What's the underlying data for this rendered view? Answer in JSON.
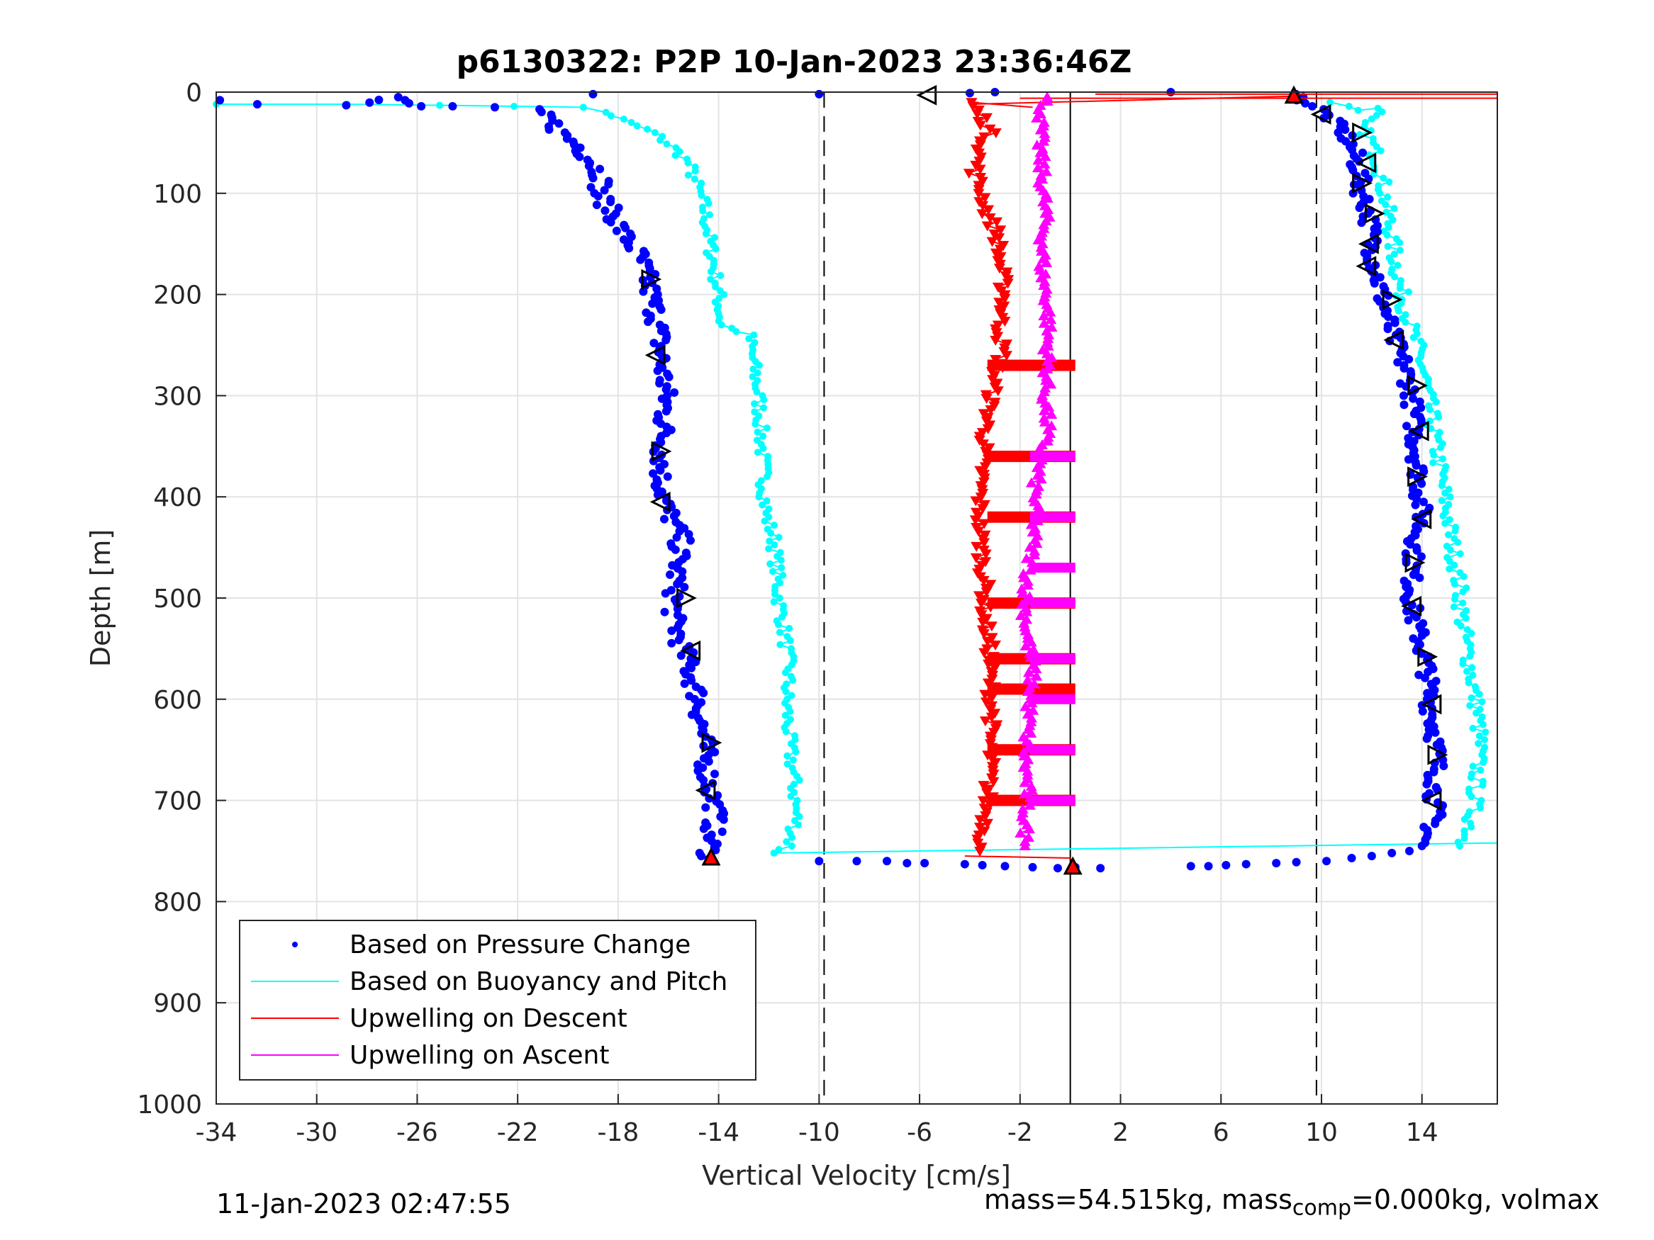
{
  "chart_data": {
    "type": "scatter",
    "title": "p6130322: P2P 10-Jan-2023 23:36:46Z",
    "xlabel": "Vertical Velocity [cm/s]",
    "ylabel": "Depth [m]",
    "xlim": [
      -34,
      17
    ],
    "ylim": [
      0,
      1000
    ],
    "y_reversed": true,
    "grid": true,
    "xticks": [
      -34,
      -30,
      -26,
      -22,
      -18,
      -14,
      -10,
      -6,
      -2,
      2,
      6,
      10,
      14
    ],
    "yticks": [
      0,
      100,
      200,
      300,
      400,
      500,
      600,
      700,
      800,
      900,
      1000
    ],
    "legend_location": "bottom-left",
    "reference_lines": [
      {
        "x": -9.8,
        "style": "dashed",
        "color": "#000000"
      },
      {
        "x": 9.8,
        "style": "dashed",
        "color": "#000000"
      },
      {
        "x": 0,
        "style": "solid",
        "color": "#000000",
        "y_range": [
          0,
          1000
        ]
      }
    ],
    "series": [
      {
        "name": "Based on Pressure Change",
        "style": "dots",
        "color": "#0000ff",
        "descent_profile": [
          [
            -33.5,
            8
          ],
          [
            -32,
            12
          ],
          [
            -28.5,
            13
          ],
          [
            -27,
            5
          ],
          [
            -26,
            14
          ],
          [
            -24.5,
            14
          ],
          [
            -23,
            15
          ],
          [
            -21.5,
            17
          ],
          [
            -20.8,
            25
          ],
          [
            -20.3,
            40
          ],
          [
            -19.5,
            55
          ],
          [
            -19,
            70
          ],
          [
            -18.6,
            85
          ],
          [
            -18.8,
            100
          ],
          [
            -18.2,
            120
          ],
          [
            -17.8,
            140
          ],
          [
            -17.2,
            160
          ],
          [
            -16.9,
            180
          ],
          [
            -16.7,
            200
          ],
          [
            -16.4,
            230
          ],
          [
            -16.3,
            260
          ],
          [
            -16.1,
            300
          ],
          [
            -16.2,
            340
          ],
          [
            -16.3,
            380
          ],
          [
            -16.1,
            410
          ],
          [
            -15.5,
            440
          ],
          [
            -15.7,
            480
          ],
          [
            -15.8,
            520
          ],
          [
            -15.3,
            560
          ],
          [
            -14.8,
            600
          ],
          [
            -14.6,
            640
          ],
          [
            -14.4,
            680
          ],
          [
            -14.1,
            710
          ],
          [
            -14.3,
            740
          ],
          [
            -14.4,
            758
          ]
        ],
        "ascent_profile": [
          [
            8.9,
            2
          ],
          [
            10.1,
            20
          ],
          [
            10.9,
            40
          ],
          [
            11.3,
            60
          ],
          [
            11.5,
            80
          ],
          [
            11.6,
            100
          ],
          [
            11.9,
            120
          ],
          [
            12.0,
            150
          ],
          [
            12.2,
            180
          ],
          [
            12.5,
            210
          ],
          [
            12.8,
            240
          ],
          [
            13.3,
            270
          ],
          [
            13.6,
            300
          ],
          [
            13.7,
            330
          ],
          [
            13.8,
            360
          ],
          [
            13.9,
            390
          ],
          [
            14.0,
            420
          ],
          [
            13.7,
            450
          ],
          [
            13.6,
            480
          ],
          [
            13.6,
            510
          ],
          [
            13.9,
            540
          ],
          [
            14.2,
            570
          ],
          [
            14.3,
            600
          ],
          [
            14.5,
            630
          ],
          [
            14.6,
            660
          ],
          [
            14.5,
            690
          ],
          [
            14.5,
            720
          ],
          [
            14.0,
            745
          ]
        ],
        "bottom_turnaround": [
          [
            -10,
            760
          ],
          [
            -8.5,
            760
          ],
          [
            -7.3,
            760
          ],
          [
            -6.5,
            762
          ],
          [
            -5.8,
            762
          ],
          [
            -4.2,
            763
          ],
          [
            -3.5,
            764
          ],
          [
            -2.6,
            765
          ],
          [
            -1.5,
            766
          ],
          [
            -0.5,
            767
          ],
          [
            0.2,
            766
          ],
          [
            1.2,
            767
          ],
          [
            4.8,
            765
          ],
          [
            5.5,
            765
          ],
          [
            6.2,
            764
          ],
          [
            7.0,
            763
          ],
          [
            8.2,
            762
          ],
          [
            9.0,
            761
          ],
          [
            10.2,
            760
          ],
          [
            11.2,
            757
          ],
          [
            12.0,
            755
          ],
          [
            12.8,
            752
          ],
          [
            13.5,
            750
          ]
        ],
        "surface_points": [
          [
            -19,
            2
          ],
          [
            -10,
            2
          ],
          [
            4,
            0
          ],
          [
            -4,
            1
          ],
          [
            -3,
            0
          ]
        ]
      },
      {
        "name": "Based on Buoyancy and Pitch",
        "style": "line+dots",
        "color": "#00ffff",
        "descent_profile": [
          [
            -34,
            12
          ],
          [
            -29,
            12
          ],
          [
            -25,
            13
          ],
          [
            -22,
            14
          ],
          [
            -19.5,
            15
          ],
          [
            -18.5,
            20
          ],
          [
            -17.6,
            30
          ],
          [
            -16.6,
            40
          ],
          [
            -15.8,
            55
          ],
          [
            -15.2,
            70
          ],
          [
            -14.9,
            90
          ],
          [
            -14.6,
            110
          ],
          [
            -14.4,
            140
          ],
          [
            -14.2,
            170
          ],
          [
            -14.0,
            200
          ],
          [
            -13.9,
            230
          ],
          [
            -12.8,
            240
          ],
          [
            -12.6,
            270
          ],
          [
            -12.4,
            300
          ],
          [
            -12.3,
            340
          ],
          [
            -12.2,
            380
          ],
          [
            -12.1,
            420
          ],
          [
            -11.8,
            440
          ],
          [
            -11.7,
            470
          ],
          [
            -11.6,
            500
          ],
          [
            -11.4,
            530
          ],
          [
            -11.2,
            570
          ],
          [
            -11.3,
            600
          ],
          [
            -11.2,
            640
          ],
          [
            -11.0,
            680
          ],
          [
            -10.9,
            720
          ],
          [
            -11.2,
            745
          ],
          [
            -11.8,
            752
          ]
        ],
        "ascent_profile": [
          [
            10.5,
            10
          ],
          [
            11.5,
            18
          ],
          [
            12.5,
            16
          ],
          [
            11.5,
            30
          ],
          [
            12.0,
            50
          ],
          [
            12.3,
            70
          ],
          [
            12.5,
            100
          ],
          [
            12.7,
            130
          ],
          [
            12.9,
            160
          ],
          [
            13.1,
            190
          ],
          [
            13.4,
            220
          ],
          [
            13.8,
            250
          ],
          [
            14.1,
            280
          ],
          [
            14.3,
            310
          ],
          [
            14.5,
            340
          ],
          [
            14.7,
            370
          ],
          [
            14.9,
            400
          ],
          [
            15.1,
            430
          ],
          [
            15.3,
            460
          ],
          [
            15.5,
            490
          ],
          [
            15.6,
            520
          ],
          [
            15.8,
            550
          ],
          [
            16.0,
            580
          ],
          [
            16.2,
            610
          ],
          [
            16.3,
            640
          ],
          [
            16.2,
            670
          ],
          [
            16.1,
            700
          ],
          [
            15.9,
            730
          ],
          [
            15.5,
            745
          ]
        ],
        "bottom_link": [
          [
            -11.8,
            752
          ],
          [
            0,
            748
          ],
          [
            17,
            742
          ]
        ]
      },
      {
        "name": "Upwelling on Descent",
        "style": "line+down-triangles",
        "color": "#ff0000",
        "profile": [
          [
            -4.0,
            10
          ],
          [
            -3.5,
            25
          ],
          [
            -3.2,
            40
          ],
          [
            -3.6,
            60
          ],
          [
            -3.8,
            80
          ],
          [
            -3.5,
            100
          ],
          [
            -3.3,
            120
          ],
          [
            -2.9,
            140
          ],
          [
            -2.8,
            170
          ],
          [
            -2.6,
            200
          ],
          [
            -2.8,
            230
          ],
          [
            -2.7,
            260
          ],
          [
            -3.0,
            280
          ],
          [
            -3.2,
            310
          ],
          [
            -3.4,
            340
          ],
          [
            -3.5,
            370
          ],
          [
            -3.6,
            400
          ],
          [
            -3.6,
            430
          ],
          [
            -3.5,
            460
          ],
          [
            -3.4,
            490
          ],
          [
            -3.4,
            520
          ],
          [
            -3.2,
            550
          ],
          [
            -3.2,
            580
          ],
          [
            -3.1,
            610
          ],
          [
            -3.2,
            640
          ],
          [
            -3.2,
            670
          ],
          [
            -3.3,
            700
          ],
          [
            -3.4,
            730
          ],
          [
            -3.6,
            750
          ]
        ],
        "bars_depths": [
          270,
          360,
          420,
          505,
          560,
          590,
          650,
          700
        ]
      },
      {
        "name": "Upwelling on Ascent",
        "style": "line+up-triangles",
        "color": "#ff00ff",
        "profile": [
          [
            -1.0,
            5
          ],
          [
            -1.2,
            30
          ],
          [
            -1.2,
            60
          ],
          [
            -1.1,
            90
          ],
          [
            -1.0,
            120
          ],
          [
            -1.1,
            150
          ],
          [
            -1.1,
            180
          ],
          [
            -0.9,
            210
          ],
          [
            -0.9,
            240
          ],
          [
            -0.9,
            270
          ],
          [
            -1.0,
            300
          ],
          [
            -0.9,
            330
          ],
          [
            -1.2,
            360
          ],
          [
            -1.4,
            390
          ],
          [
            -1.4,
            420
          ],
          [
            -1.5,
            450
          ],
          [
            -1.7,
            480
          ],
          [
            -1.8,
            510
          ],
          [
            -1.7,
            540
          ],
          [
            -1.5,
            570
          ],
          [
            -1.6,
            600
          ],
          [
            -1.7,
            630
          ],
          [
            -1.8,
            660
          ],
          [
            -1.7,
            690
          ],
          [
            -1.8,
            720
          ],
          [
            -1.8,
            745
          ]
        ],
        "bars_depths": [
          360,
          420,
          470,
          505,
          560,
          600,
          650,
          700
        ]
      }
    ],
    "black_triangle_markers": [
      [
        -16.7,
        185,
        "right"
      ],
      [
        -16.5,
        260,
        "left"
      ],
      [
        -16.3,
        355,
        "right"
      ],
      [
        -16.3,
        405,
        "left"
      ],
      [
        -15.3,
        500,
        "right"
      ],
      [
        -15.1,
        552,
        "left"
      ],
      [
        -14.3,
        643,
        "right"
      ],
      [
        -14.5,
        690,
        "left"
      ],
      [
        -5.7,
        3,
        "left"
      ],
      [
        10.0,
        22,
        "left"
      ],
      [
        11.6,
        40,
        "right"
      ],
      [
        11.8,
        70,
        "left"
      ],
      [
        11.6,
        90,
        "right"
      ],
      [
        12.1,
        120,
        "right"
      ],
      [
        11.9,
        150,
        "left"
      ],
      [
        11.8,
        172,
        "left"
      ],
      [
        12.8,
        205,
        "right"
      ],
      [
        12.9,
        245,
        "left"
      ],
      [
        13.8,
        290,
        "right"
      ],
      [
        13.9,
        335,
        "left"
      ],
      [
        13.8,
        380,
        "right"
      ],
      [
        14.0,
        422,
        "left"
      ],
      [
        13.7,
        465,
        "right"
      ],
      [
        13.6,
        508,
        "left"
      ],
      [
        14.2,
        558,
        "right"
      ],
      [
        14.4,
        605,
        "left"
      ],
      [
        14.6,
        655,
        "right"
      ],
      [
        14.4,
        700,
        "left"
      ]
    ],
    "red_star_markers": [
      [
        8.9,
        4
      ],
      [
        -14.3,
        757
      ],
      [
        0.1,
        766
      ]
    ],
    "red_surface_lines": [
      [
        [
          1.0,
          2
        ],
        [
          17,
          2
        ]
      ],
      [
        [
          -2,
          6
        ],
        [
          17,
          6
        ]
      ],
      [
        [
          -4,
          12
        ],
        [
          8.9,
          4
        ]
      ],
      [
        [
          -1.5,
          15
        ],
        [
          -4,
          10
        ]
      ]
    ],
    "red_bottom_line": [
      [
        -4.2,
        755
      ],
      [
        0,
        757
      ]
    ]
  },
  "footer": {
    "timestamp": "11-Jan-2023 02:47:55",
    "mass_info_prefix": "mass=54.515kg, mass",
    "mass_info_sub": "comp",
    "mass_info_suffix": "=0.000kg, volmax"
  }
}
